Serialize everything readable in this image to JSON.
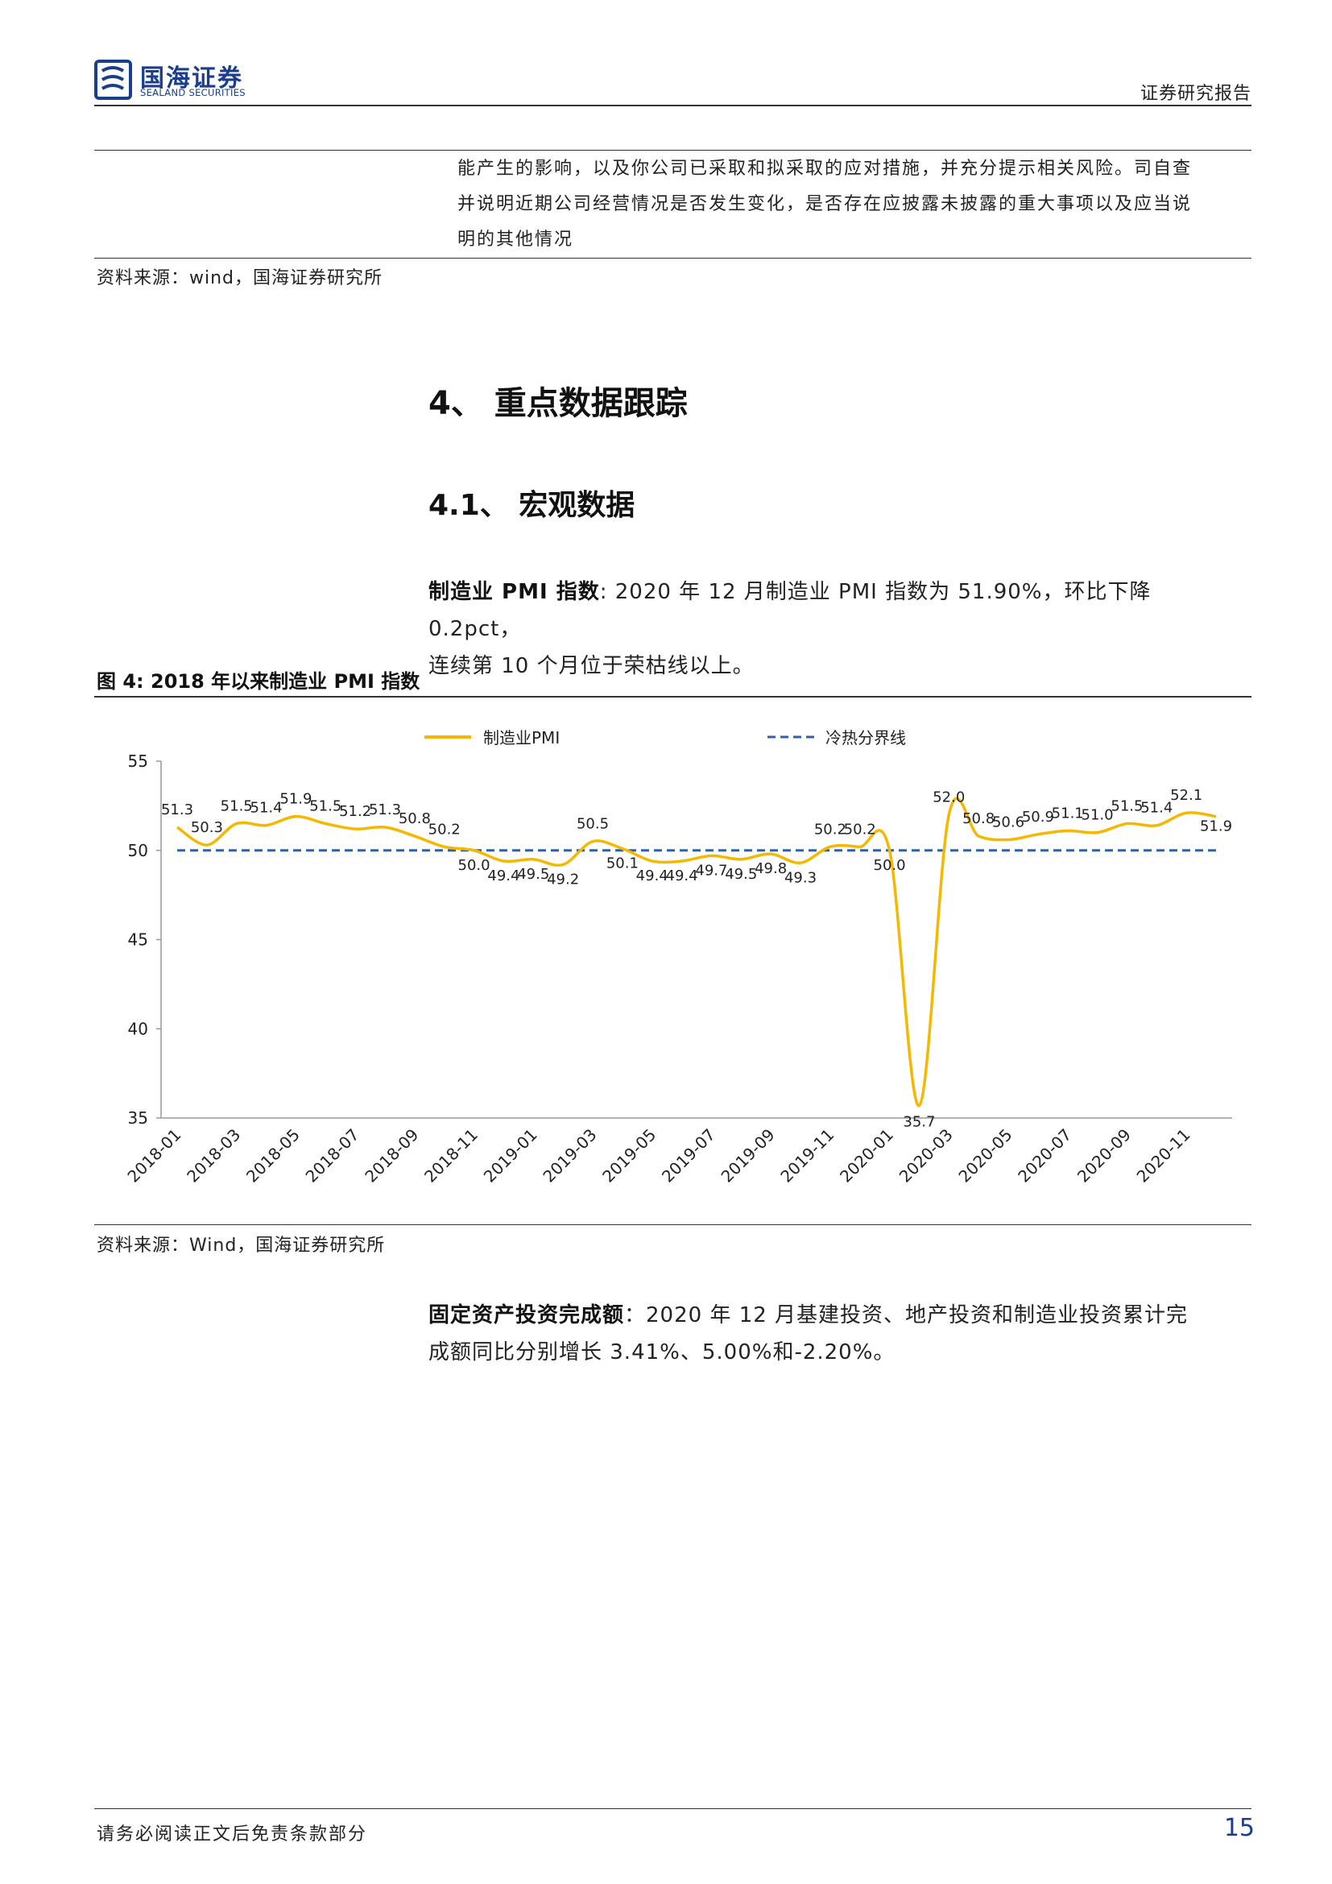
{
  "header": {
    "brand_cn": "国海证券",
    "brand_en": "SEALAND SECURITIES",
    "report_type": "证券研究报告",
    "brand_color": "#1a3e8c"
  },
  "continuation": {
    "lines": [
      "能产生的影响，以及你公司已采取和拟采取的应对措施，并充分提示相关风险。司自查",
      "并说明近期公司经营情况是否发生变化，是否存在应披露未披露的重大事项以及应当说",
      "明的其他情况"
    ]
  },
  "source_1": "资料来源：wind，国海证券研究所",
  "section": {
    "heading": "4、 重点数据跟踪"
  },
  "subsection": {
    "heading": "4.1、 宏观数据"
  },
  "pmi_para": {
    "label": "制造业 PMI 指数",
    "line1": ": 2020 年 12 月制造业 PMI 指数为 51.90%，环比下降 0.2pct，",
    "line2": "连续第 10 个月位于荣枯线以上。"
  },
  "figure": {
    "title": "图 4:  2018 年以来制造业 PMI 指数"
  },
  "chart_data": {
    "type": "line",
    "title": "",
    "xlabel": "",
    "ylabel": "",
    "ylim": [
      35,
      55
    ],
    "yticks": [
      "55",
      "50",
      "45",
      "40",
      "35"
    ],
    "xticks": [
      "2018-01",
      "2018-03",
      "2018-05",
      "2018-07",
      "2018-09",
      "2018-11",
      "2019-01",
      "2019-03",
      "2019-05",
      "2019-07",
      "2019-09",
      "2019-11",
      "2020-01",
      "2020-03",
      "2020-05",
      "2020-07",
      "2020-09",
      "2020-11"
    ],
    "legend_position": "top",
    "series": [
      {
        "name": "制造业PMI",
        "color": "#f5b800",
        "x": [
          "2018-01",
          "2018-02",
          "2018-03",
          "2018-04",
          "2018-05",
          "2018-06",
          "2018-07",
          "2018-08",
          "2018-09",
          "2018-10",
          "2018-11",
          "2018-12",
          "2019-01",
          "2019-02",
          "2019-03",
          "2019-04",
          "2019-05",
          "2019-06",
          "2019-07",
          "2019-08",
          "2019-09",
          "2019-10",
          "2019-11",
          "2019-12",
          "2020-01",
          "2020-02",
          "2020-03",
          "2020-04",
          "2020-05",
          "2020-06",
          "2020-07",
          "2020-08",
          "2020-09",
          "2020-10",
          "2020-11",
          "2020-12"
        ],
        "values": [
          51.3,
          50.3,
          51.5,
          51.4,
          51.9,
          51.5,
          51.2,
          51.3,
          50.8,
          50.2,
          50.0,
          49.4,
          49.5,
          49.2,
          50.5,
          50.1,
          49.4,
          49.4,
          49.7,
          49.5,
          49.8,
          49.3,
          50.2,
          50.2,
          50.0,
          35.7,
          52.0,
          50.8,
          50.6,
          50.9,
          51.1,
          51.0,
          51.5,
          51.4,
          52.1,
          51.9
        ],
        "labels": [
          "51.3",
          "50.3",
          "51.5",
          "51.4",
          "51.9",
          "51.5",
          "51.2",
          "51.3",
          "50.8",
          "50.2",
          "50.0",
          "49.4",
          "49.5",
          "49.2",
          "50.5",
          "50.1",
          "49.4",
          "49.4",
          "49.7",
          "49.5",
          "49.8",
          "49.3",
          "50.2",
          "50.2",
          "50.0",
          "35.7",
          "52.0",
          "50.8",
          "50.6",
          "50.9",
          "51.1",
          "51.0",
          "51.5",
          "51.4",
          "52.1",
          "51.9"
        ]
      },
      {
        "name": "冷热分界线",
        "color": "#2e5fa8",
        "values_constant": 50
      }
    ]
  },
  "source_2": "资料来源：Wind，国海证券研究所",
  "fai_para": {
    "label": "固定资产投资完成额",
    "line1": "：2020 年 12 月基建投资、地产投资和制造业投资累计完",
    "line2": "成额同比分别增长 3.41%、5.00%和-2.20%。"
  },
  "footer": {
    "disclaimer": "请务必阅读正文后免责条款部分",
    "page_number": "15"
  }
}
